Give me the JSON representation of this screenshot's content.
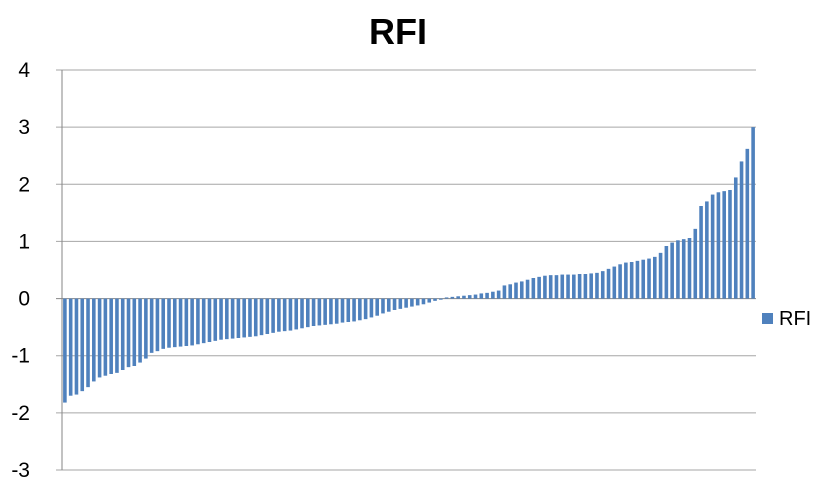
{
  "chart_data": {
    "type": "bar",
    "title": "RFI",
    "xlabel": "",
    "ylabel": "",
    "ylim": [
      -3,
      4
    ],
    "yticks": [
      "4",
      "3",
      "2",
      "1",
      "0",
      "-1",
      "-2",
      "-3"
    ],
    "grid": true,
    "legend_position": "right",
    "series": [
      {
        "name": "RFI",
        "color": "#4f81bd",
        "values": [
          -1.82,
          -1.7,
          -1.68,
          -1.62,
          -1.55,
          -1.45,
          -1.38,
          -1.35,
          -1.32,
          -1.3,
          -1.25,
          -1.2,
          -1.18,
          -1.12,
          -1.05,
          -0.95,
          -0.92,
          -0.88,
          -0.86,
          -0.85,
          -0.84,
          -0.83,
          -0.82,
          -0.8,
          -0.78,
          -0.76,
          -0.74,
          -0.72,
          -0.71,
          -0.7,
          -0.69,
          -0.68,
          -0.67,
          -0.66,
          -0.64,
          -0.62,
          -0.6,
          -0.58,
          -0.57,
          -0.56,
          -0.54,
          -0.52,
          -0.5,
          -0.48,
          -0.47,
          -0.46,
          -0.45,
          -0.44,
          -0.42,
          -0.41,
          -0.4,
          -0.38,
          -0.36,
          -0.33,
          -0.3,
          -0.26,
          -0.23,
          -0.2,
          -0.18,
          -0.16,
          -0.14,
          -0.12,
          -0.1,
          -0.07,
          -0.04,
          -0.02,
          0.02,
          0.03,
          0.04,
          0.05,
          0.06,
          0.07,
          0.09,
          0.1,
          0.12,
          0.14,
          0.23,
          0.25,
          0.28,
          0.3,
          0.33,
          0.36,
          0.38,
          0.4,
          0.41,
          0.41,
          0.42,
          0.42,
          0.42,
          0.43,
          0.43,
          0.44,
          0.45,
          0.48,
          0.52,
          0.56,
          0.6,
          0.63,
          0.64,
          0.66,
          0.68,
          0.7,
          0.73,
          0.8,
          0.92,
          0.98,
          1.02,
          1.04,
          1.06,
          1.22,
          1.62,
          1.7,
          1.82,
          1.86,
          1.88,
          1.9,
          2.12,
          2.4,
          2.62,
          3.0
        ]
      }
    ]
  }
}
